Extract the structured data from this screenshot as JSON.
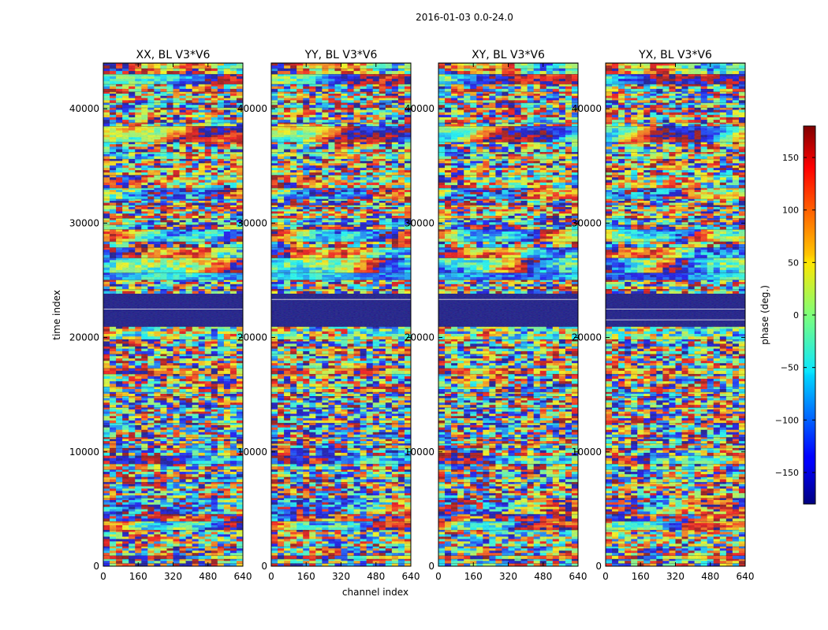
{
  "chart_data": {
    "type": "heatmap",
    "suptitle": "2016-01-03 0.0-24.0",
    "xlabel": "channel index",
    "ylabel": "time index",
    "xlim": [
      0,
      640
    ],
    "ylim": [
      0,
      44000
    ],
    "xticks": [
      0,
      160,
      320,
      480,
      640
    ],
    "yticks": [
      0,
      10000,
      20000,
      30000,
      40000
    ],
    "panels": [
      {
        "title": "XX, BL V3*V6"
      },
      {
        "title": "YY, BL V3*V6"
      },
      {
        "title": "XY, BL V3*V6"
      },
      {
        "title": "YX, BL V3*V6"
      }
    ],
    "colorbar": {
      "label": "phase (deg.)",
      "colormap": "jet",
      "range": [
        -180,
        180
      ],
      "ticks": [
        -150,
        -100,
        -50,
        0,
        50,
        100,
        150
      ],
      "tick_labels": [
        "−150",
        "−100",
        "−50",
        "0",
        "50",
        "100",
        "150"
      ]
    },
    "flagged_time_range": [
      21500,
      23500
    ],
    "flagged_color": "#00007f"
  }
}
